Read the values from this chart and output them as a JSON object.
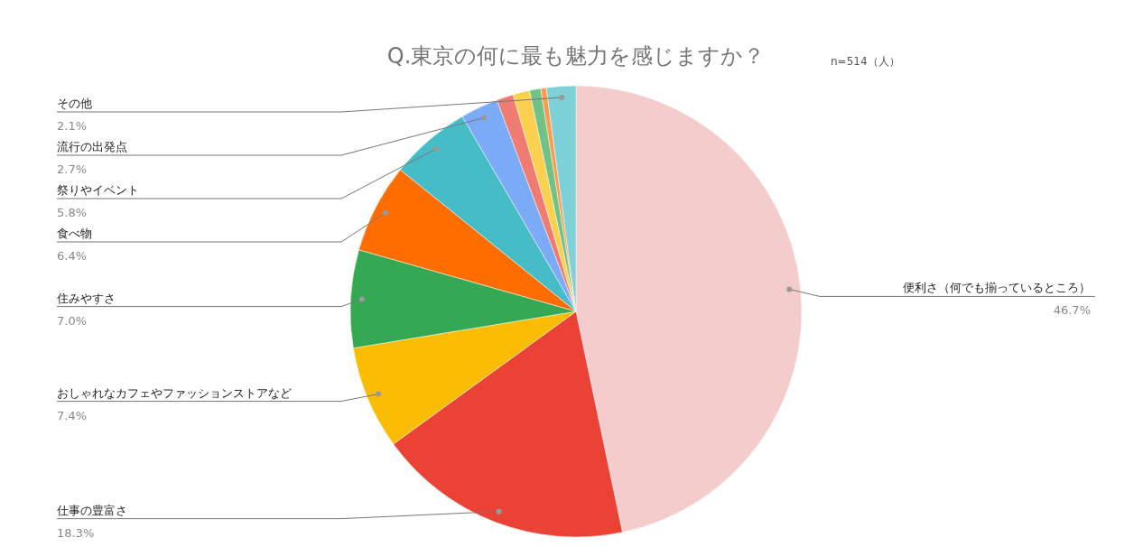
{
  "chart_data": {
    "type": "pie",
    "title": "Q.東京の何に最も魅力を感じますか？",
    "subtitle": "n=514（人）",
    "categories": [
      "便利さ（何でも揃っているところ）",
      "仕事の豊富さ",
      "おしゃれなカフェやファッションストアなど",
      "住みやすさ",
      "食べ物",
      "祭りやイベント",
      "流行の出発点",
      null,
      null,
      null,
      null,
      "その他"
    ],
    "values": [
      46.7,
      18.3,
      7.4,
      7.0,
      6.4,
      5.8,
      2.7,
      1.2,
      1.2,
      0.8,
      0.4,
      2.1
    ],
    "value_labels": [
      "46.7%",
      "18.3%",
      "7.4%",
      "7.0%",
      "6.4%",
      "5.8%",
      "2.7%",
      null,
      null,
      null,
      null,
      "2.1%"
    ],
    "colors": [
      "#f4cccc",
      "#ea4335",
      "#fbbc04",
      "#34a853",
      "#ff6d01",
      "#46bdc6",
      "#7baaf7",
      "#f07b72",
      "#fcd04f",
      "#71c287",
      "#ff994d",
      "#7ed1d7"
    ]
  }
}
